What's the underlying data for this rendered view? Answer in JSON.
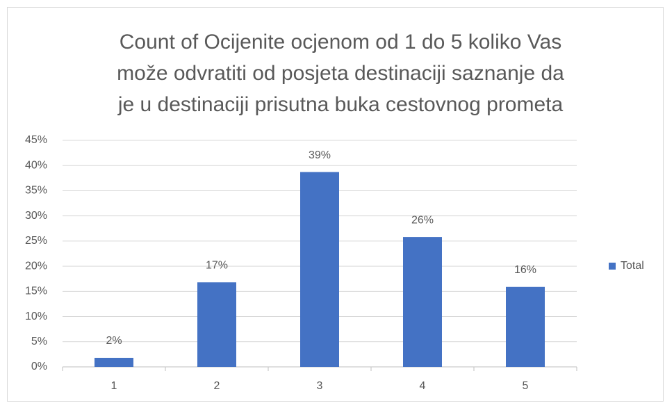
{
  "chart_data": {
    "type": "bar",
    "title": [
      "Count of Ocijenite ocjenom od 1 do 5 koliko Vas",
      "može odvratiti od posjeta destinaciji saznanje da",
      "je u destinaciji prisutna buka cestovnog prometa"
    ],
    "categories": [
      "1",
      "2",
      "3",
      "4",
      "5"
    ],
    "series": [
      {
        "name": "Total",
        "color": "#4472c4",
        "values": [
          1.8,
          16.8,
          38.7,
          25.8,
          15.9
        ],
        "value_labels": [
          "2%",
          "17%",
          "39%",
          "26%",
          "16%"
        ]
      }
    ],
    "ylim": [
      0,
      45
    ],
    "yticks": [
      {
        "value": 0,
        "label": "0%"
      },
      {
        "value": 5,
        "label": "5%"
      },
      {
        "value": 10,
        "label": "10%"
      },
      {
        "value": 15,
        "label": "15%"
      },
      {
        "value": 20,
        "label": "20%"
      },
      {
        "value": 25,
        "label": "25%"
      },
      {
        "value": 30,
        "label": "30%"
      },
      {
        "value": 35,
        "label": "35%"
      },
      {
        "value": 40,
        "label": "40%"
      },
      {
        "value": 45,
        "label": "45%"
      }
    ],
    "grid": true,
    "legend": "right"
  }
}
